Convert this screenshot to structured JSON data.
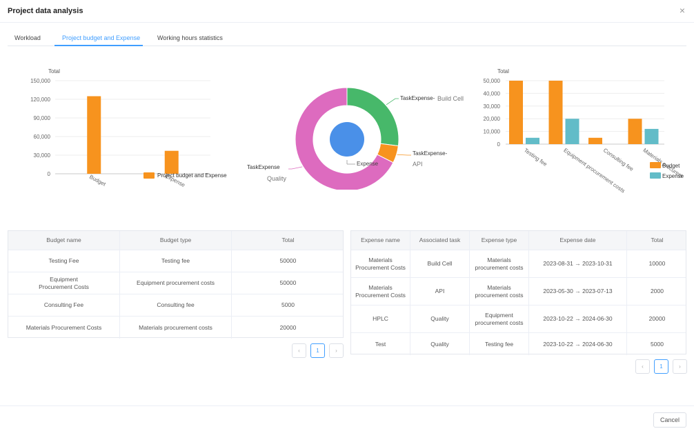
{
  "modal": {
    "title": "Project data analysis",
    "close_icon": "×"
  },
  "tabs": [
    {
      "label": "Workload",
      "active": false
    },
    {
      "label": "Project budget and Expense",
      "active": true
    },
    {
      "label": "Working hours statistics",
      "active": false
    }
  ],
  "colors": {
    "orange": "#f7931e",
    "teal": "#62bcc8",
    "pink": "#dd6bbf",
    "green": "#47b86a",
    "blue": "#4a90e8",
    "accent": "#409eff"
  },
  "chart_data": [
    {
      "type": "bar",
      "ylabel": "Total",
      "yticks": [
        "150,000",
        "120,000",
        "90,000",
        "60,000",
        "30,000",
        "0"
      ],
      "ylim": [
        0,
        150000
      ],
      "categories": [
        "Budget",
        "Expense"
      ],
      "series": [
        {
          "name": "Project budget and Expense",
          "values": [
            125000,
            37000
          ]
        }
      ],
      "legend": "right"
    },
    {
      "type": "pie",
      "slices": [
        {
          "label": "TaskExpense- Build Cell",
          "value": 10000
        },
        {
          "label": "TaskExpense- API",
          "value": 2000
        },
        {
          "label": "TaskExpense Quality",
          "value": 25000
        }
      ],
      "inner_label": "Expense",
      "labels_display": {
        "build_cell": [
          "TaskExpense-",
          "Build Cell"
        ],
        "api": [
          "TaskExpense-",
          "API"
        ],
        "quality": [
          "TaskExpense",
          "Quality"
        ]
      }
    },
    {
      "type": "bar",
      "ylabel": "Total",
      "yticks": [
        "50,000",
        "40,000",
        "30,000",
        "20,000",
        "10,000",
        "0"
      ],
      "ylim": [
        0,
        50000
      ],
      "categories": [
        "Testing fee",
        "Equipment procurement costs",
        "Consulting fee",
        "Materials procurement costs"
      ],
      "category_labels": [
        "Testing fee",
        "Equipment procurement costs",
        "Consulting fee",
        "Materials procurem"
      ],
      "series": [
        {
          "name": "Budget",
          "values": [
            50000,
            50000,
            5000,
            20000
          ]
        },
        {
          "name": "Expense",
          "values": [
            5000,
            20000,
            0,
            12000
          ]
        }
      ],
      "legend": "bottom-right"
    }
  ],
  "budget_table": {
    "headers": [
      "Budget name",
      "Budget type",
      "Total"
    ],
    "rows": [
      [
        "Testing Fee",
        "Testing fee",
        "50000"
      ],
      [
        "Equipment Procurement Costs",
        "Equipment procurement costs",
        "50000"
      ],
      [
        "Consulting Fee",
        "Consulting fee",
        "5000"
      ],
      [
        "Materials Procurement Costs",
        "Materials procurement costs",
        "20000"
      ]
    ],
    "page": "1"
  },
  "expense_table": {
    "headers": [
      "Expense name",
      "Associated task",
      "Expense type",
      "Expense date",
      "Total"
    ],
    "rows": [
      [
        "Materials Procurement Costs",
        "Build Cell",
        "Materials procurement costs",
        "2023-08-31 → 2023-10-31",
        "10000"
      ],
      [
        "Materials Procurement Costs",
        "API",
        "Materials procurement costs",
        "2023-05-30 → 2023-07-13",
        "2000"
      ],
      [
        "HPLC",
        "Quality",
        "Equipment procurement costs",
        "2023-10-22 → 2024-06-30",
        "20000"
      ],
      [
        "Test",
        "Quality",
        "Testing fee",
        "2023-10-22 → 2024-06-30",
        "5000"
      ]
    ],
    "page": "1"
  },
  "pager": {
    "prev_icon": "‹",
    "next_icon": "›"
  },
  "footer": {
    "cancel_label": "Cancel"
  }
}
